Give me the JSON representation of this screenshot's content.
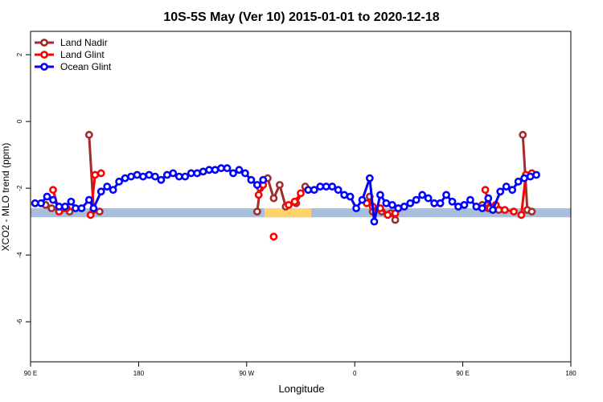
{
  "chart_data": {
    "type": "line",
    "title": "10S-5S May (Ver 10)   2015-01-01 to 2020-12-18",
    "xlabel": "Longitude",
    "ylabel": "XCO2 - MLO trend (ppm)",
    "xlim": [
      0,
      360
    ],
    "ylim": [
      -7.2,
      2.7
    ],
    "x_ticks": [
      {
        "value": 0,
        "label": "90 E"
      },
      {
        "value": 72,
        "label": "180"
      },
      {
        "value": 144,
        "label": "90 W"
      },
      {
        "value": 216,
        "label": "0"
      },
      {
        "value": 288,
        "label": "90 E"
      },
      {
        "value": 360,
        "label": "180"
      }
    ],
    "y_ticks": [
      {
        "value": 2,
        "label": "2"
      },
      {
        "value": 0,
        "label": "0"
      },
      {
        "value": -2,
        "label": "-2"
      },
      {
        "value": -4,
        "label": "-4"
      },
      {
        "value": -6,
        "label": "-6"
      }
    ],
    "legend": {
      "position": "top-left"
    },
    "bands": [
      {
        "name": "ocean",
        "color": "#a8bedd",
        "y0": -2.87,
        "y1": -2.6,
        "x_ranges": [
          [
            0,
            156
          ],
          [
            187,
            360
          ]
        ]
      },
      {
        "name": "land",
        "color": "#ffd36b",
        "y0": -2.87,
        "y1": -2.6,
        "x_ranges": [
          [
            156,
            187
          ]
        ]
      }
    ],
    "series": [
      {
        "name": "Land Nadir",
        "color": "#a52a2a",
        "segments": [
          [
            [
              10,
              -2.5
            ],
            [
              14,
              -2.6
            ],
            [
              20,
              -2.65
            ],
            [
              26,
              -2.7
            ]
          ],
          [
            [
              39,
              -0.4
            ],
            [
              42,
              -2.65
            ],
            [
              46,
              -2.7
            ]
          ],
          [
            [
              151,
              -2.7
            ],
            [
              153,
              -2.0
            ],
            [
              158,
              -1.7
            ],
            [
              162,
              -2.3
            ],
            [
              166,
              -1.9
            ],
            [
              170,
              -2.55
            ],
            [
              177,
              -2.45
            ],
            [
              183,
              -1.95
            ]
          ],
          [
            [
              226,
              -2.25
            ],
            [
              228,
              -2.7
            ],
            [
              234,
              -2.7
            ],
            [
              240,
              -2.75
            ],
            [
              243,
              -2.95
            ]
          ],
          [
            [
              301,
              -2.5
            ],
            [
              305,
              -2.6
            ],
            [
              312,
              -2.65
            ]
          ],
          [
            [
              328,
              -0.4
            ],
            [
              331,
              -2.65
            ],
            [
              334,
              -2.7
            ]
          ]
        ]
      },
      {
        "name": "Land Glint",
        "color": "#ff0000",
        "segments": [
          [
            [
              15,
              -2.05
            ],
            [
              19,
              -2.7
            ],
            [
              24,
              -2.6
            ]
          ],
          [
            [
              40,
              -2.8
            ],
            [
              43,
              -1.6
            ],
            [
              47,
              -1.55
            ]
          ],
          [
            [
              152,
              -2.2
            ],
            [
              155,
              -1.9
            ]
          ],
          [
            [
              162,
              -3.45
            ]
          ],
          [
            [
              172,
              -2.5
            ],
            [
              176,
              -2.4
            ],
            [
              180,
              -2.15
            ]
          ],
          [
            [
              224,
              -2.45
            ],
            [
              228,
              -2.55
            ],
            [
              233,
              -2.6
            ],
            [
              238,
              -2.8
            ],
            [
              243,
              -2.75
            ]
          ],
          [
            [
              303,
              -2.05
            ],
            [
              306,
              -2.6
            ],
            [
              310,
              -2.5
            ],
            [
              316,
              -2.65
            ],
            [
              322,
              -2.7
            ]
          ],
          [
            [
              327,
              -2.8
            ],
            [
              330,
              -1.6
            ],
            [
              334,
              -1.55
            ]
          ]
        ]
      },
      {
        "name": "Ocean Glint",
        "color": "#0000ff",
        "segments": [
          [
            [
              3,
              -2.45
            ],
            [
              7,
              -2.45
            ],
            [
              11,
              -2.25
            ],
            [
              15,
              -2.35
            ],
            [
              19,
              -2.55
            ],
            [
              23,
              -2.55
            ],
            [
              27,
              -2.4
            ],
            [
              30,
              -2.6
            ],
            [
              34,
              -2.6
            ],
            [
              39,
              -2.35
            ],
            [
              42,
              -2.6
            ],
            [
              47,
              -2.1
            ],
            [
              51,
              -1.95
            ],
            [
              55,
              -2.05
            ],
            [
              59,
              -1.8
            ],
            [
              63,
              -1.7
            ],
            [
              67,
              -1.65
            ],
            [
              71,
              -1.6
            ],
            [
              75,
              -1.65
            ],
            [
              79,
              -1.6
            ],
            [
              83,
              -1.65
            ],
            [
              87,
              -1.75
            ],
            [
              91,
              -1.6
            ],
            [
              95,
              -1.55
            ],
            [
              99,
              -1.65
            ],
            [
              103,
              -1.65
            ],
            [
              107,
              -1.55
            ],
            [
              111,
              -1.55
            ],
            [
              115,
              -1.5
            ],
            [
              119,
              -1.45
            ],
            [
              123,
              -1.45
            ],
            [
              127,
              -1.4
            ],
            [
              131,
              -1.4
            ],
            [
              135,
              -1.55
            ],
            [
              139,
              -1.45
            ],
            [
              143,
              -1.55
            ],
            [
              147,
              -1.75
            ],
            [
              151,
              -1.9
            ],
            [
              155,
              -1.75
            ]
          ],
          [
            [
              185,
              -2.05
            ],
            [
              189,
              -2.05
            ],
            [
              193,
              -1.95
            ],
            [
              197,
              -1.95
            ],
            [
              201,
              -1.95
            ],
            [
              205,
              -2.05
            ],
            [
              209,
              -2.2
            ],
            [
              213,
              -2.25
            ],
            [
              217,
              -2.6
            ],
            [
              221,
              -2.35
            ],
            [
              226,
              -1.7
            ],
            [
              229,
              -3.0
            ],
            [
              233,
              -2.2
            ],
            [
              237,
              -2.45
            ],
            [
              241,
              -2.5
            ],
            [
              245,
              -2.6
            ],
            [
              249,
              -2.55
            ],
            [
              253,
              -2.45
            ],
            [
              257,
              -2.35
            ],
            [
              261,
              -2.2
            ],
            [
              265,
              -2.3
            ],
            [
              269,
              -2.45
            ],
            [
              273,
              -2.45
            ],
            [
              277,
              -2.2
            ],
            [
              281,
              -2.4
            ],
            [
              285,
              -2.55
            ],
            [
              289,
              -2.5
            ],
            [
              293,
              -2.35
            ],
            [
              297,
              -2.55
            ],
            [
              301,
              -2.6
            ],
            [
              305,
              -2.3
            ],
            [
              308,
              -2.65
            ],
            [
              313,
              -2.1
            ],
            [
              317,
              -1.95
            ],
            [
              321,
              -2.05
            ],
            [
              325,
              -1.8
            ],
            [
              329,
              -1.7
            ],
            [
              333,
              -1.65
            ],
            [
              337,
              -1.6
            ]
          ]
        ]
      }
    ]
  }
}
